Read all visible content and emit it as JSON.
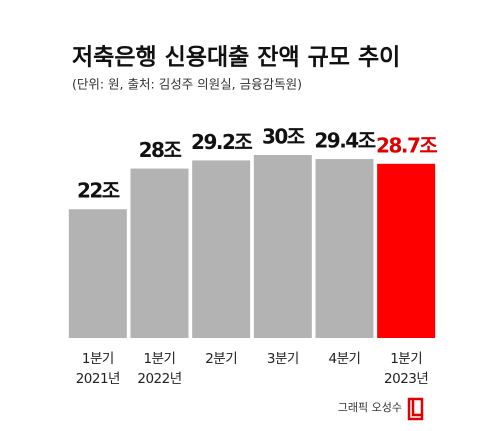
{
  "chart_data": {
    "type": "bar",
    "title": "저축은행 신용대출 잔액 규모 추이",
    "subtitle": "(단위: 원, 출처: 김성주 의원실, 금융감독원)",
    "categories": [
      [
        "1분기",
        "2021년"
      ],
      [
        "1분기",
        "2022년"
      ],
      [
        "2분기"
      ],
      [
        "3분기"
      ],
      [
        "4분기"
      ],
      [
        "1분기",
        "2023년"
      ]
    ],
    "values": [
      22,
      28,
      29.2,
      30,
      29.4,
      28.7
    ],
    "value_labels": [
      "22조",
      "28조",
      "29.2조",
      "30조",
      "29.4조",
      "28.7조"
    ],
    "colors": [
      "#b3b3b3",
      "#b3b3b3",
      "#b3b3b3",
      "#b3b3b3",
      "#b3b3b3",
      "#ff0000"
    ],
    "label_colors": [
      "#111111",
      "#111111",
      "#111111",
      "#111111",
      "#111111",
      "#e00000"
    ],
    "ylim": [
      3,
      30
    ],
    "credit": "그래픽 오성수"
  }
}
